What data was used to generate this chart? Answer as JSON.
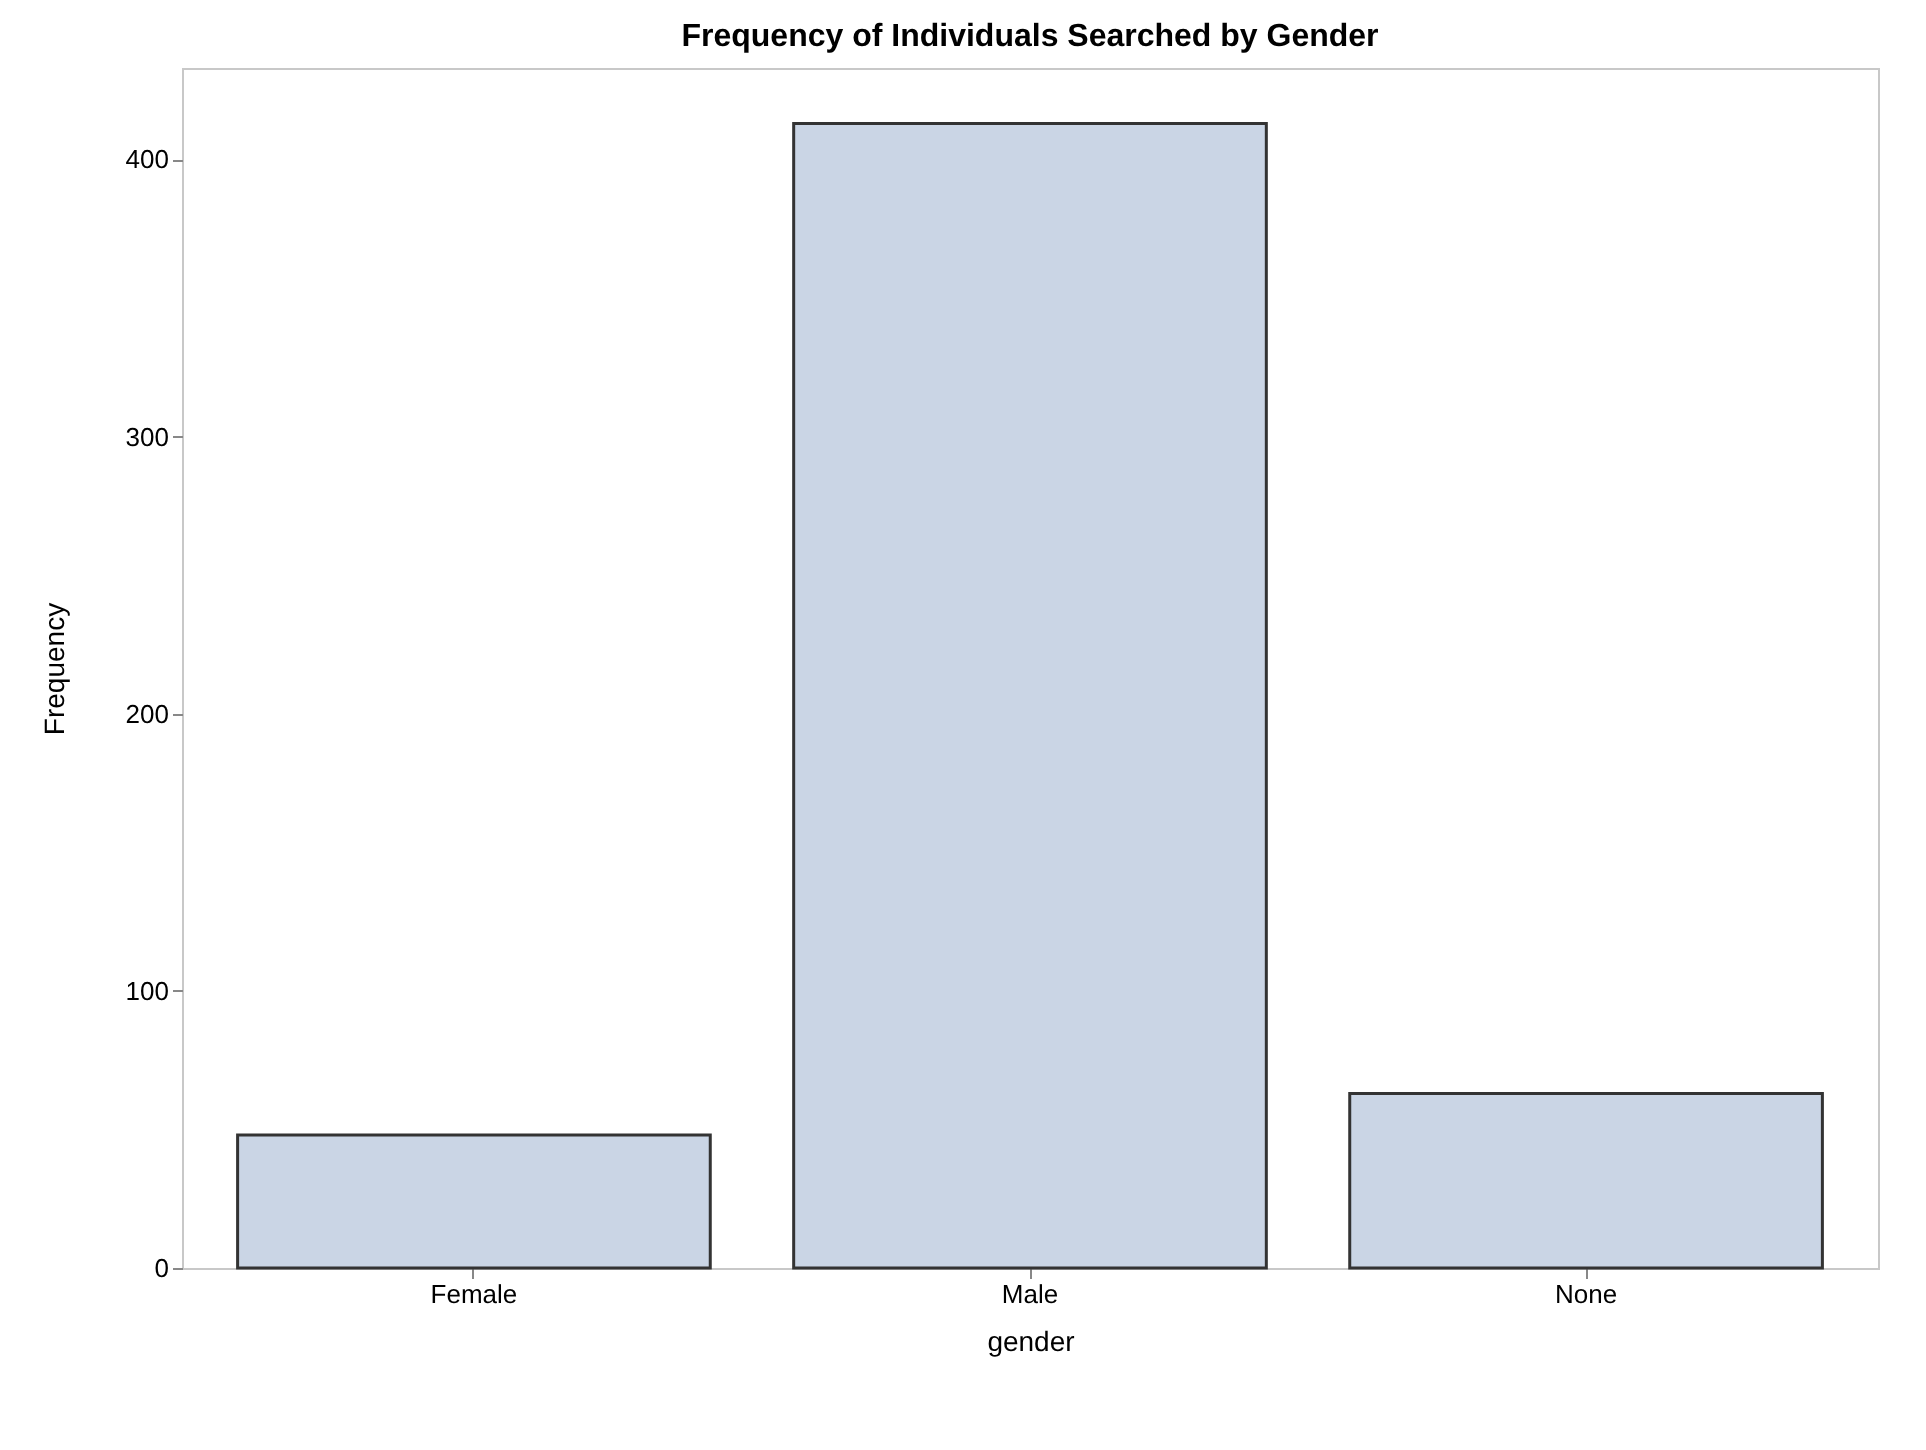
{
  "chart_data": {
    "type": "bar",
    "title": "Frequency of Individuals Searched by Gender",
    "xlabel": "gender",
    "ylabel": "Frequency",
    "categories": [
      "Female",
      "Male",
      "None"
    ],
    "values": [
      48,
      413,
      63
    ],
    "color": "#cad5e5",
    "ylim": [
      0,
      433
    ],
    "yticks": [
      0,
      100,
      200,
      300,
      400
    ],
    "grid": false
  }
}
